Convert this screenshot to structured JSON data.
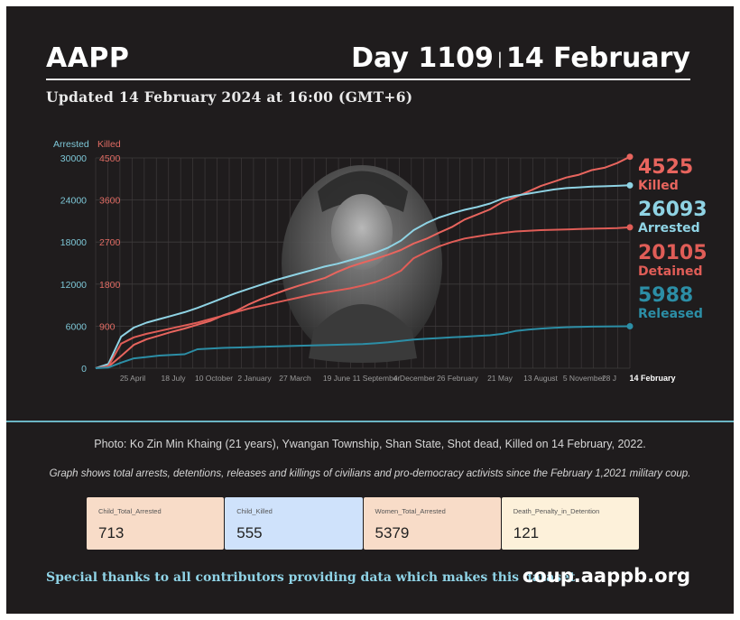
{
  "header": {
    "brand": "AAPP",
    "day": "Day 1109",
    "separator": "|",
    "date": "14 February",
    "updated": "Updated 14 February 2024 at 16:00 (GMT+6)"
  },
  "chart_data": {
    "type": "line",
    "axis_labels": {
      "left_outer": "Arrested",
      "left_inner": "Killed"
    },
    "arrested_axis": {
      "ticks": [
        "30000",
        "24000",
        "18000",
        "12000",
        "6000",
        "0"
      ],
      "ylim": [
        0,
        30000
      ]
    },
    "killed_axis": {
      "ticks": [
        "4500",
        "3600",
        "2700",
        "1800",
        "900"
      ],
      "ylim": [
        0,
        4500
      ]
    },
    "x_ticks": [
      "25 April",
      "18 July",
      "10 October",
      "2 January",
      "27 March",
      "19 June",
      "11 September",
      "4 December",
      "26 February",
      "21 May",
      "13 August",
      "5 November",
      "28 J",
      "14 February"
    ],
    "series": [
      {
        "name": "Killed",
        "axis": "killed",
        "color": "#e8655e",
        "final": "4525",
        "values": [
          0,
          30,
          260,
          500,
          620,
          700,
          780,
          850,
          930,
          1010,
          1130,
          1220,
          1360,
          1480,
          1580,
          1680,
          1770,
          1850,
          1930,
          2060,
          2170,
          2260,
          2340,
          2430,
          2530,
          2670,
          2770,
          2900,
          3020,
          3180,
          3290,
          3400,
          3560,
          3660,
          3780,
          3900,
          3990,
          4080,
          4140,
          4240,
          4290,
          4390,
          4525
        ]
      },
      {
        "name": "Arrested",
        "axis": "arrested",
        "color": "#8fd3e4",
        "final": "26093",
        "values": [
          0,
          600,
          4500,
          5800,
          6500,
          7000,
          7500,
          8000,
          8600,
          9300,
          10000,
          10700,
          11300,
          11900,
          12500,
          13000,
          13500,
          14000,
          14500,
          14900,
          15400,
          15900,
          16500,
          17200,
          18200,
          19700,
          20700,
          21500,
          22100,
          22600,
          23000,
          23500,
          24200,
          24600,
          24900,
          25200,
          25500,
          25700,
          25800,
          25900,
          25960,
          26020,
          26093
        ]
      },
      {
        "name": "Detained",
        "axis": "arrested",
        "color": "#e05d57",
        "final": "20105",
        "values": [
          0,
          300,
          3500,
          4400,
          4900,
          5300,
          5700,
          6100,
          6500,
          7000,
          7500,
          8000,
          8500,
          8900,
          9300,
          9700,
          10100,
          10500,
          10800,
          11100,
          11400,
          11800,
          12300,
          13000,
          13900,
          15700,
          16600,
          17400,
          18000,
          18500,
          18800,
          19100,
          19300,
          19500,
          19600,
          19700,
          19750,
          19800,
          19850,
          19900,
          19950,
          20000,
          20105
        ]
      },
      {
        "name": "Released",
        "axis": "arrested",
        "color": "#2c8ea6",
        "final": "5988",
        "values": [
          0,
          100,
          800,
          1400,
          1600,
          1800,
          1900,
          2000,
          2700,
          2800,
          2900,
          2950,
          3000,
          3050,
          3100,
          3150,
          3200,
          3250,
          3300,
          3350,
          3400,
          3450,
          3550,
          3700,
          3900,
          4100,
          4200,
          4300,
          4400,
          4500,
          4600,
          4700,
          4900,
          5300,
          5500,
          5650,
          5750,
          5850,
          5900,
          5930,
          5950,
          5970,
          5988
        ]
      }
    ]
  },
  "caption": {
    "photo": "Photo: Ko Zin Min Khaing (21 years), Ywangan Township, Shan State, Shot dead, Killed on 14 February, 2022.",
    "description": "Graph shows total arrests, detentions, releases and killings of civilians and pro-democracy activists since the February 1,2021 military coup."
  },
  "kpis": [
    {
      "label": "Child_Total_Arrested",
      "value": "713",
      "bg": "#f8dcc8"
    },
    {
      "label": "Child_Killed",
      "value": "555",
      "bg": "#cfe2fb"
    },
    {
      "label": "Women_Total_Arrested",
      "value": "5379",
      "bg": "#f8dcc8"
    },
    {
      "label": "Death_Penalty_in_Detention",
      "value": "121",
      "bg": "#fdf1da"
    }
  ],
  "footer": {
    "thanks": "Special thanks to all contributors providing data which makes this dataset.",
    "url": "coup.aappb.org"
  }
}
